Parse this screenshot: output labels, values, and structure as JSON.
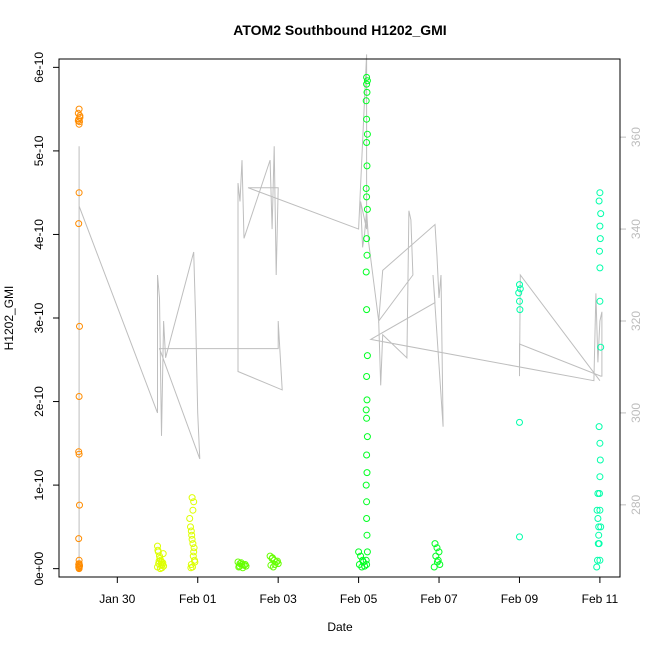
{
  "chart_data": {
    "type": "scatter",
    "title": "ATOM2 Southbound H1202_GMI",
    "xlabel": "Date",
    "ylabel": "H1202_GMI",
    "x_ticks": [
      "Jan 30",
      "Feb 01",
      "Feb 03",
      "Feb 05",
      "Feb 07",
      "Feb 09",
      "Feb 11"
    ],
    "x_tick_days": [
      0,
      2,
      4,
      6,
      8,
      10,
      12
    ],
    "xlim_days": [
      -1.45,
      12.5
    ],
    "ylim": [
      -1e-11,
      6.1e-10
    ],
    "y_ticks": [
      0,
      1e-10,
      2e-10,
      3e-10,
      4e-10,
      5e-10,
      6e-10
    ],
    "y_tick_labels": [
      "0e+00",
      "1e-10",
      "2e-10",
      "3e-10",
      "4e-10",
      "5e-10",
      "6e-10"
    ],
    "y2_ticks": [
      280,
      300,
      320,
      340,
      360
    ],
    "y2_range": [
      264.3,
      377.0
    ],
    "line_color": "#bebebe",
    "series": [
      {
        "color": "#FF8C00",
        "x": [
          -0.95,
          -0.97,
          -0.93,
          -0.96,
          -0.94,
          -0.95,
          -0.97,
          -0.93,
          -0.95,
          -0.96,
          -0.94,
          -0.95,
          -0.96,
          -0.95,
          -0.94,
          -0.96,
          -0.95,
          -0.96,
          -0.94,
          -0.95,
          -0.95,
          -0.96,
          -0.94,
          -0.95
        ],
        "y": [
          5.5e-10,
          5.45e-10,
          5.42e-10,
          5.38e-10,
          5.35e-10,
          5.32e-10,
          5.36e-10,
          5.4e-10,
          4.5e-10,
          4.13e-10,
          2.9e-10,
          2.06e-10,
          1.4e-10,
          1.37e-10,
          7.6e-11,
          3.6e-11,
          1e-11,
          5e-12,
          3e-12,
          1e-12,
          0.0,
          2e-12,
          4e-12,
          6e-12
        ]
      },
      {
        "color": "#DDFF00",
        "x": [
          1.0,
          1.02,
          1.05,
          1.08,
          1.1,
          1.12,
          1.15,
          1.0,
          1.03,
          1.06,
          1.09,
          1.11,
          1.14,
          1.01,
          1.04,
          1.07,
          1.13,
          1.8,
          1.82,
          1.85,
          1.88,
          1.9,
          1.92,
          1.84,
          1.87,
          1.89,
          1.91,
          1.83,
          1.86,
          1.93,
          1.88,
          1.9,
          1.86,
          1.84
        ],
        "y": [
          2.7e-11,
          2e-11,
          1.5e-11,
          1e-11,
          8e-12,
          5e-12,
          3e-12,
          2e-12,
          6e-12,
          1.2e-11,
          4e-12,
          1e-12,
          1.8e-11,
          2.2e-11,
          9e-12,
          0.0,
          7e-12,
          6e-11,
          5e-11,
          4e-11,
          3e-11,
          2e-11,
          1e-11,
          5e-12,
          2e-12,
          1.5e-11,
          2.5e-11,
          1e-12,
          3.5e-11,
          8e-12,
          7e-11,
          8e-11,
          8.5e-11,
          4.5e-11
        ]
      },
      {
        "color": "#66FF00",
        "x": [
          3.0,
          3.05,
          3.1,
          3.15,
          3.2,
          3.02,
          3.08,
          3.12,
          3.18,
          3.04,
          3.8,
          3.85,
          3.9,
          3.95,
          4.0,
          3.82,
          3.88,
          3.92,
          3.98,
          3.86
        ],
        "y": [
          8e-12,
          6e-12,
          5e-12,
          4e-12,
          3e-12,
          2e-12,
          7e-12,
          1e-12,
          5e-12,
          3e-12,
          1.5e-11,
          1.2e-11,
          1e-11,
          8e-12,
          6e-12,
          4e-12,
          2e-12,
          5e-12,
          9e-12,
          1.3e-11
        ]
      },
      {
        "color": "#00FF22",
        "x": [
          6.2,
          6.22,
          6.2,
          6.21,
          6.19,
          6.2,
          6.22,
          6.2,
          6.21,
          6.19,
          6.2,
          6.22,
          6.2,
          6.21,
          6.19,
          6.2,
          6.22,
          6.2,
          6.21,
          6.19,
          6.2,
          6.22,
          6.2,
          6.21,
          6.19,
          6.2,
          6.2,
          6.21,
          6.22,
          6.19,
          6.2,
          6.0,
          6.05,
          6.1,
          6.02,
          6.08,
          6.12,
          6.15,
          7.9,
          7.95,
          8.0,
          7.92,
          7.98,
          8.02,
          7.88,
          7.96
        ],
        "y": [
          5.88e-10,
          5.84e-10,
          5.8e-10,
          5.7e-10,
          5.6e-10,
          5.38e-10,
          5.2e-10,
          5.1e-10,
          4.82e-10,
          4.55e-10,
          4.45e-10,
          4.3e-10,
          3.95e-10,
          3.75e-10,
          3.55e-10,
          3.1e-10,
          2.55e-10,
          2.3e-10,
          2.02e-10,
          1.9e-10,
          1.8e-10,
          1.58e-10,
          1.36e-10,
          1.15e-10,
          1e-10,
          8e-11,
          6e-11,
          4e-11,
          2e-11,
          1e-11,
          5e-12,
          2e-11,
          1.5e-11,
          1e-11,
          5e-12,
          2e-12,
          8e-12,
          3e-12,
          3e-11,
          2.5e-11,
          2e-11,
          1.5e-11,
          1e-11,
          5e-12,
          2e-12,
          8e-12
        ]
      },
      {
        "color": "#00FFAA",
        "x": [
          10.0,
          10.02,
          9.98,
          10.0,
          10.01,
          10.0,
          10.0,
          12.0,
          11.98,
          12.02,
          12.0,
          12.01,
          11.99,
          12.0,
          12.0,
          12.02,
          11.98,
          12.0,
          12.01,
          12.0,
          11.99,
          12.0,
          12.02,
          11.98,
          12.0,
          11.95,
          11.93,
          11.97,
          11.96,
          11.94,
          11.92,
          11.95,
          11.97
        ],
        "y": [
          3.4e-10,
          3.35e-10,
          3.3e-10,
          3.2e-10,
          3.1e-10,
          1.75e-10,
          3.8e-11,
          4.5e-10,
          4.4e-10,
          4.25e-10,
          4.1e-10,
          3.95e-10,
          3.8e-10,
          3.6e-10,
          3.2e-10,
          2.65e-10,
          1.7e-10,
          1.5e-10,
          1.3e-10,
          1.1e-10,
          9e-11,
          7e-11,
          5e-11,
          3e-11,
          1e-11,
          9e-11,
          7e-11,
          5e-11,
          3e-11,
          1e-11,
          2e-12,
          6e-11,
          4e-11
        ]
      }
    ],
    "line_y2": {
      "x": [
        -0.95,
        -0.95,
        -0.95,
        -0.95,
        1.0,
        1.0,
        1.05,
        1.1,
        1.15,
        1.2,
        1.9,
        1.95,
        2.0,
        2.05,
        1.05,
        4.0,
        4.0,
        4.1,
        3.0,
        3.0,
        3.05,
        3.1,
        3.15,
        3.8,
        3.85,
        3.9,
        3.95,
        4.0,
        3.25,
        6.0,
        6.2,
        6.2,
        6.05,
        6.1,
        6.15,
        6.2,
        6.25,
        6.5,
        6.55,
        6.6,
        7.2,
        7.25,
        7.3,
        7.35,
        6.5,
        6.6,
        7.9,
        7.95,
        8.0,
        8.05,
        8.1,
        7.85,
        7.9,
        6.3,
        11.85,
        11.9,
        11.95,
        12.0,
        12.05,
        12.05,
        12.02,
        10.0,
        10.0,
        10.02,
        12.0
      ],
      "y": [
        268.0,
        345.0,
        358.0,
        345.0,
        300.0,
        330.0,
        325.0,
        295.0,
        320.0,
        312.0,
        335.0,
        320.0,
        300.0,
        290.0,
        314.0,
        314.0,
        320.0,
        305.0,
        309.0,
        350.0,
        346.0,
        355.0,
        338.0,
        355.0,
        340.0,
        358.0,
        330.0,
        349.0,
        349.0,
        340.0,
        378.0,
        340.0,
        346.0,
        336.0,
        339.0,
        344.0,
        337.0,
        320.0,
        306.0,
        317.0,
        312.0,
        344.0,
        342.0,
        330.0,
        320.0,
        331.0,
        341.0,
        334.0,
        325.0,
        330.0,
        297.0,
        330.0,
        324.0,
        316.0,
        307.0,
        326.0,
        311.0,
        320.0,
        322.0,
        308.0,
        308.0,
        315.0,
        308.0,
        330.0,
        307.0
      ]
    }
  }
}
